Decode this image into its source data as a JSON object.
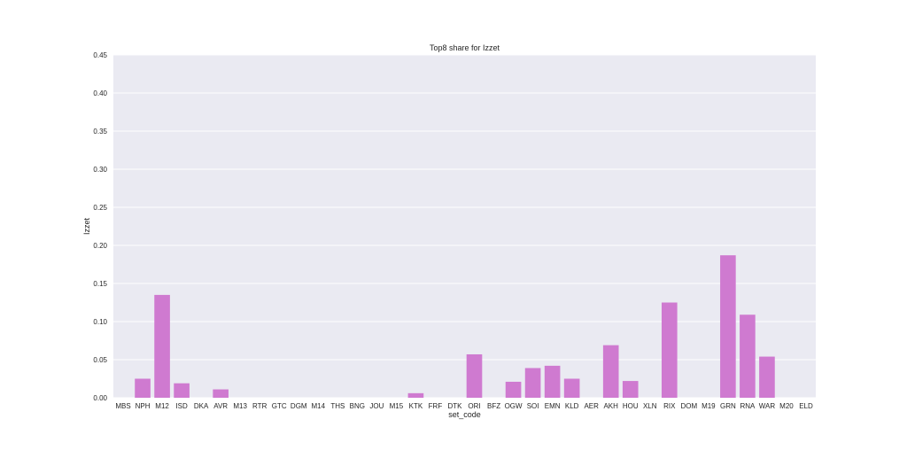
{
  "chart_data": {
    "type": "bar",
    "title": "Top8 share for Izzet",
    "xlabel": "set_code",
    "ylabel": "Izzet",
    "ylim": [
      0,
      0.45
    ],
    "yticks": [
      "0.00",
      "0.05",
      "0.10",
      "0.15",
      "0.20",
      "0.25",
      "0.30",
      "0.35",
      "0.40",
      "0.45"
    ],
    "grid": true,
    "bar_color": "#cf7ad0",
    "background_color": "#eaeaf2",
    "categories": [
      "MBS",
      "NPH",
      "M12",
      "ISD",
      "DKA",
      "AVR",
      "M13",
      "RTR",
      "GTC",
      "DGM",
      "M14",
      "THS",
      "BNG",
      "JOU",
      "M15",
      "KTK",
      "FRF",
      "DTK",
      "ORI",
      "BFZ",
      "OGW",
      "SOI",
      "EMN",
      "KLD",
      "AER",
      "AKH",
      "HOU",
      "XLN",
      "RIX",
      "DOM",
      "M19",
      "GRN",
      "RNA",
      "WAR",
      "M20",
      "ELD"
    ],
    "values": [
      0,
      0.025,
      0.135,
      0.019,
      0,
      0.011,
      0,
      0,
      0,
      0,
      0,
      0,
      0,
      0,
      0,
      0.006,
      0,
      0,
      0.057,
      0,
      0.021,
      0.039,
      0.042,
      0.025,
      0,
      0.069,
      0.022,
      0,
      0.125,
      0,
      0,
      0.187,
      0.109,
      0.054,
      0,
      0
    ]
  }
}
